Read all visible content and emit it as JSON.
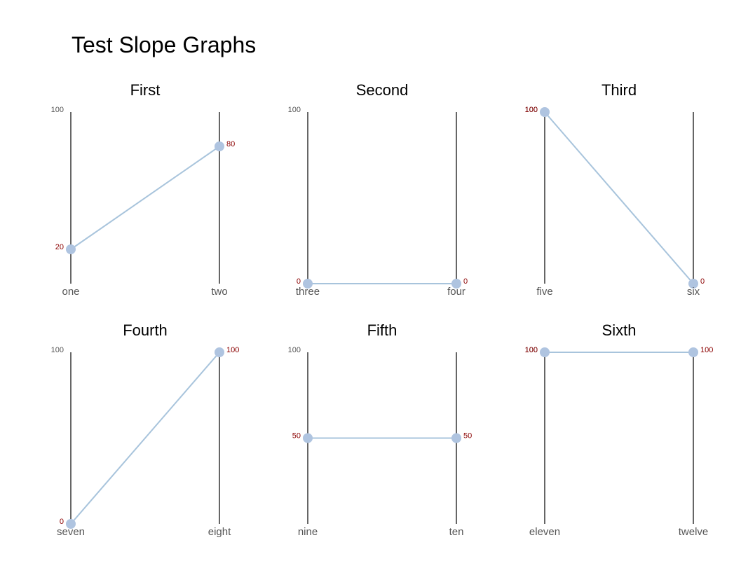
{
  "title": "Test Slope Graphs",
  "colors": {
    "line": "#a8c4dc",
    "point": "#afc4e0",
    "value_label": "#8b0000",
    "axis": "#000000",
    "tick_label": "#555555",
    "category_label": "#555555"
  },
  "chart_data": [
    {
      "type": "line",
      "title": "First",
      "categories": [
        "one",
        "two"
      ],
      "values": [
        20,
        80
      ],
      "ylim": [
        0,
        100
      ],
      "ytick_label": "100",
      "value_labels": [
        "20",
        "80"
      ]
    },
    {
      "type": "line",
      "title": "Second",
      "categories": [
        "three",
        "four"
      ],
      "values": [
        0,
        0
      ],
      "ylim": [
        0,
        100
      ],
      "ytick_label": "100",
      "value_labels": [
        "0",
        "0"
      ]
    },
    {
      "type": "line",
      "title": "Third",
      "categories": [
        "five",
        "six"
      ],
      "values": [
        100,
        0
      ],
      "ylim": [
        0,
        100
      ],
      "ytick_label": "100",
      "value_labels": [
        "100",
        "0"
      ]
    },
    {
      "type": "line",
      "title": "Fourth",
      "categories": [
        "seven",
        "eight"
      ],
      "values": [
        0,
        100
      ],
      "ylim": [
        0,
        100
      ],
      "ytick_label": "100",
      "value_labels": [
        "0",
        "100"
      ]
    },
    {
      "type": "line",
      "title": "Fifth",
      "categories": [
        "nine",
        "ten"
      ],
      "values": [
        50,
        50
      ],
      "ylim": [
        0,
        100
      ],
      "ytick_label": "100",
      "value_labels": [
        "50",
        "50"
      ]
    },
    {
      "type": "line",
      "title": "Sixth",
      "categories": [
        "eleven",
        "twelve"
      ],
      "values": [
        100,
        100
      ],
      "ylim": [
        0,
        100
      ],
      "ytick_label": "100",
      "value_labels": [
        "100",
        "100"
      ]
    }
  ]
}
